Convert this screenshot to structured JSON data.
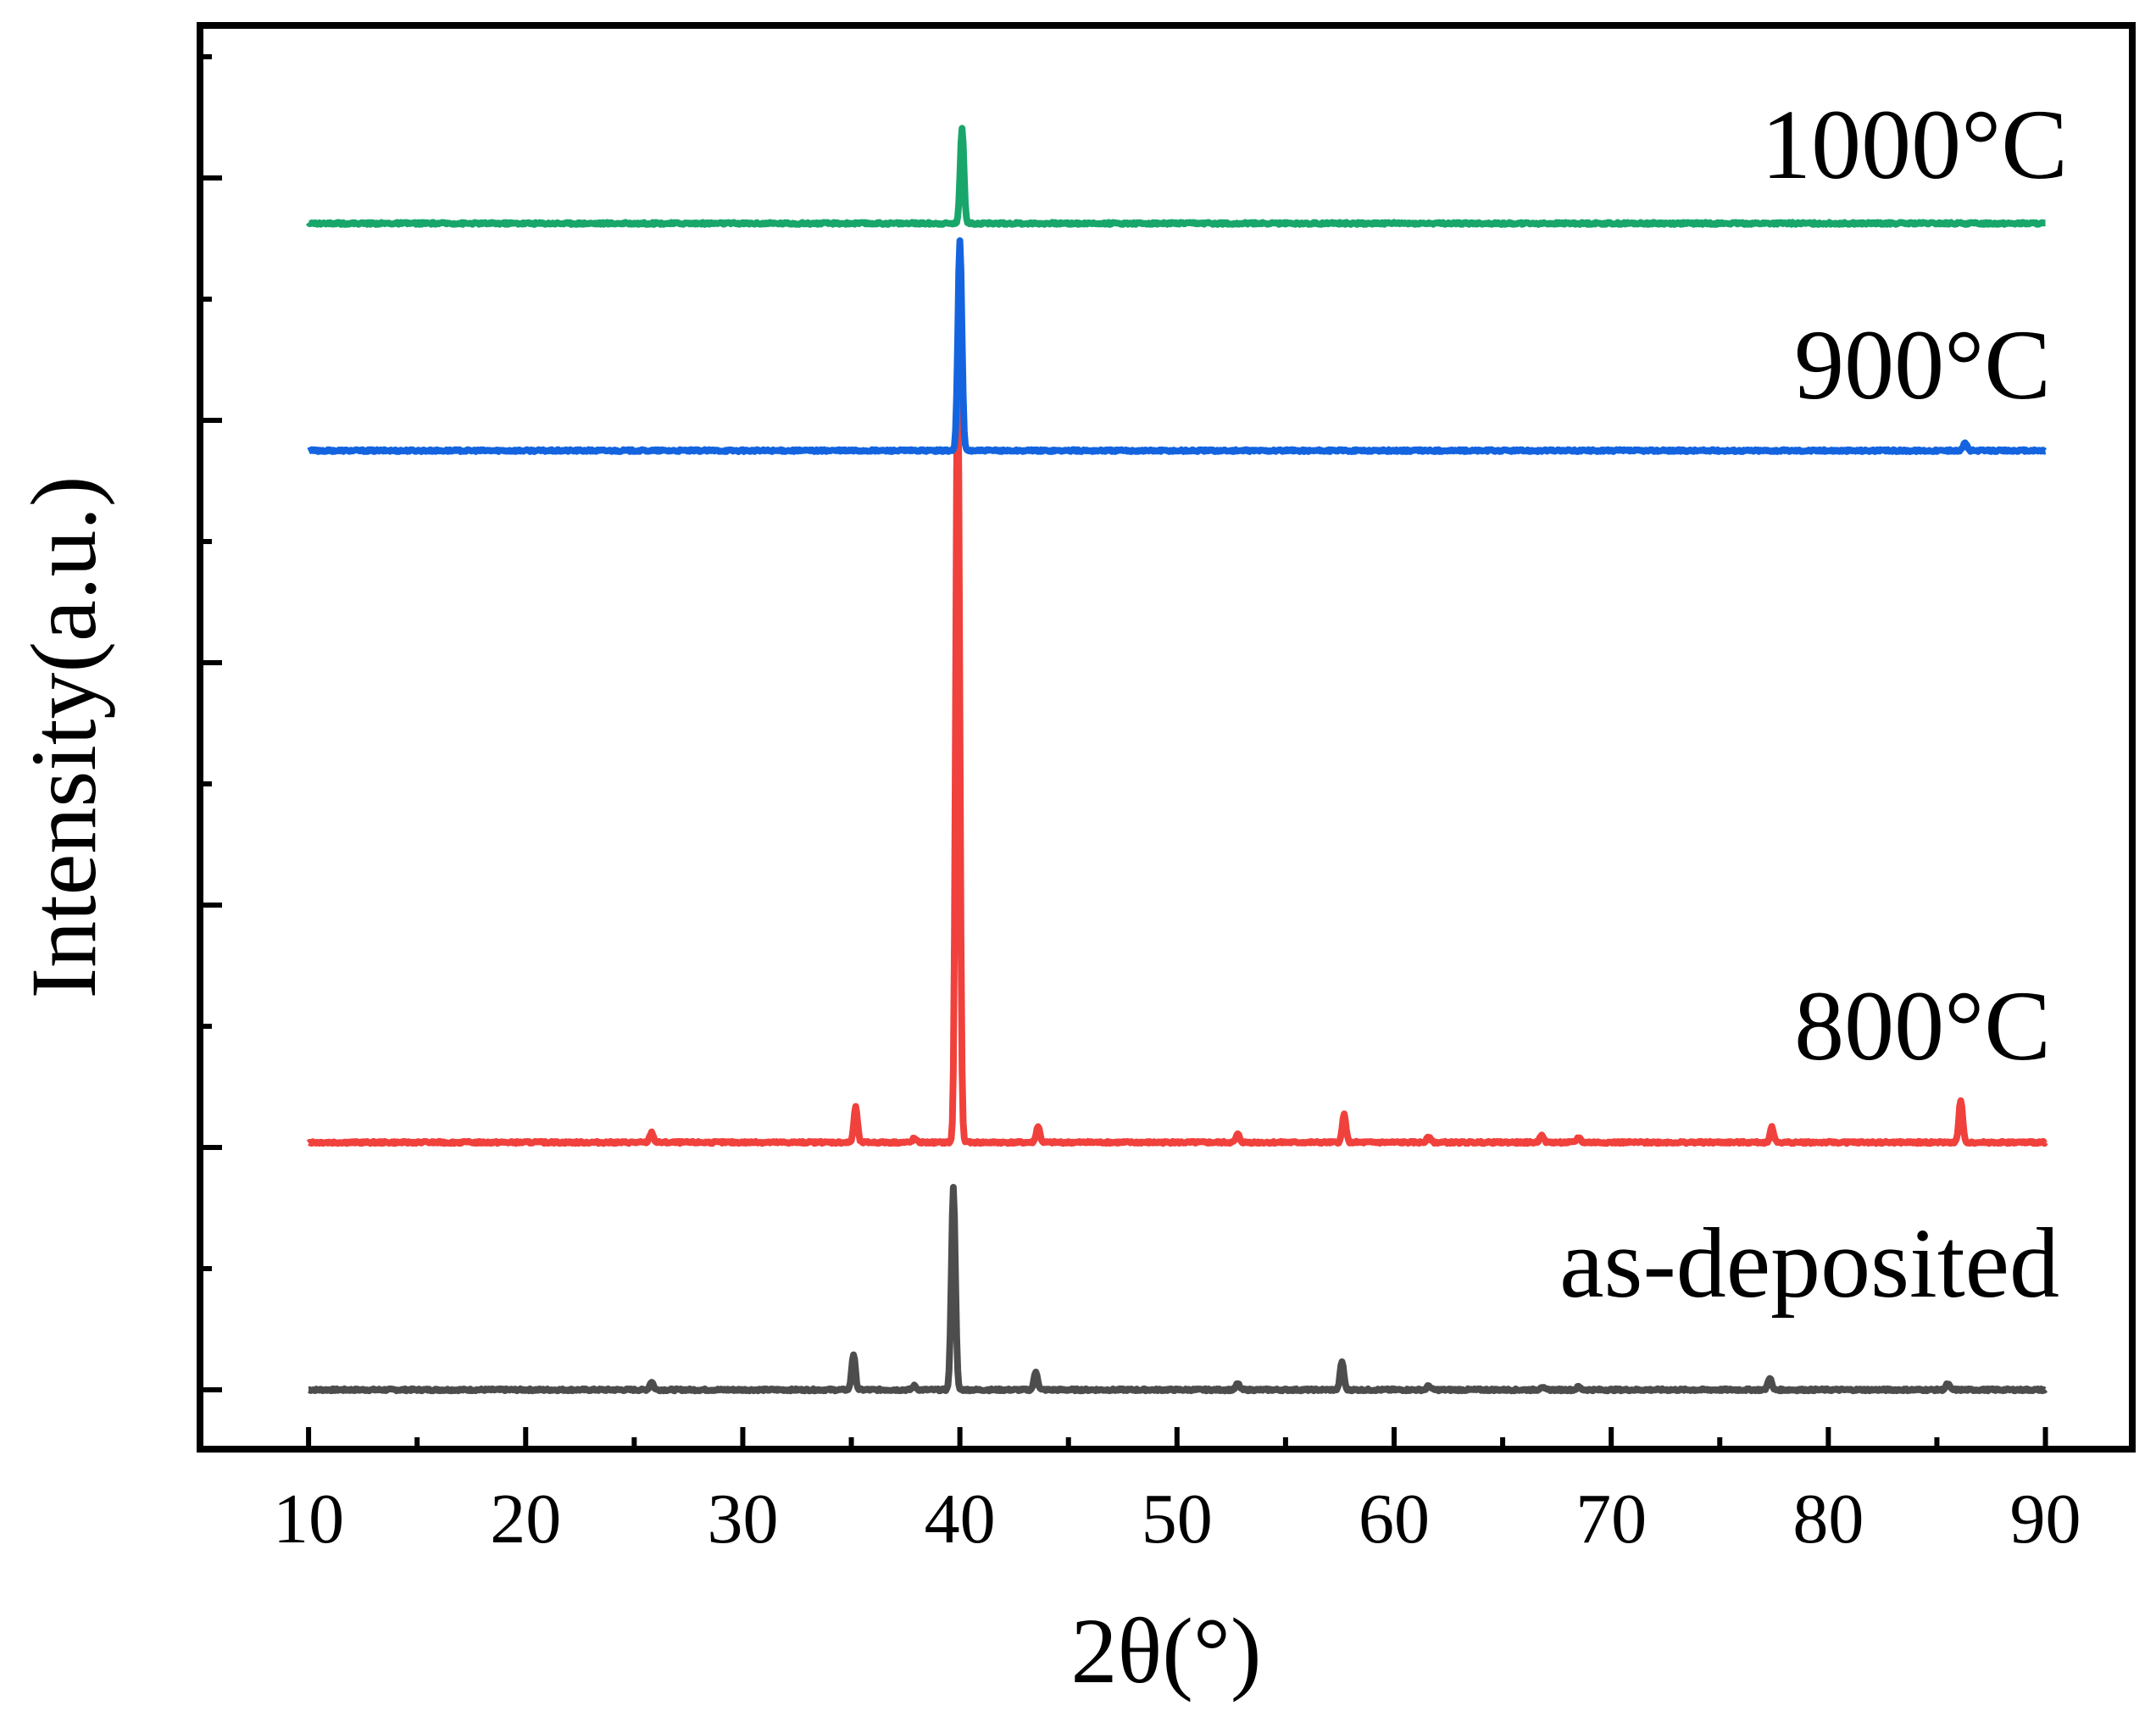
{
  "chart_data": {
    "type": "line",
    "title": "",
    "xlabel": "2θ(°)",
    "ylabel": "Intensity(a.u.)",
    "xlim": [
      5,
      94
    ],
    "ylim": [
      -0.5,
      14
    ],
    "x_ticks": [
      10,
      20,
      30,
      40,
      50,
      60,
      70,
      80,
      90
    ],
    "x_tick_labels": [
      "10",
      "20",
      "30",
      "40",
      "50",
      "60",
      "70",
      "80",
      "90"
    ],
    "y_tick_labels": [],
    "grid": false,
    "legend": "labels placed at right end of each trace",
    "series": [
      {
        "name": "as-deposited",
        "color": "#4d4d4d",
        "baseline": 0,
        "peaks": [
          [
            25.8,
            0.08
          ],
          [
            35.1,
            0.35
          ],
          [
            37.9,
            0.04
          ],
          [
            39.7,
            2.0
          ],
          [
            43.5,
            0.18
          ],
          [
            52.8,
            0.06
          ],
          [
            57.6,
            0.28
          ],
          [
            61.6,
            0.04
          ],
          [
            66.8,
            0.03
          ],
          [
            68.5,
            0.03
          ],
          [
            77.3,
            0.12
          ],
          [
            85.5,
            0.06
          ]
        ]
      },
      {
        "name": "800°C",
        "color": "#f0413c",
        "baseline": 2.45,
        "peaks": [
          [
            25.8,
            0.1
          ],
          [
            35.2,
            0.35
          ],
          [
            37.9,
            0.04
          ],
          [
            39.9,
            7.7
          ],
          [
            43.6,
            0.16
          ],
          [
            52.8,
            0.08
          ],
          [
            57.7,
            0.28
          ],
          [
            61.6,
            0.06
          ],
          [
            66.8,
            0.08
          ],
          [
            68.5,
            0.05
          ],
          [
            77.4,
            0.15
          ],
          [
            86.1,
            0.42
          ]
        ]
      },
      {
        "name": "900°C",
        "color": "#1464e0",
        "baseline": 9.3,
        "peaks": [
          [
            40.0,
            2.07
          ],
          [
            86.3,
            0.08
          ]
        ]
      },
      {
        "name": "1000°C",
        "color": "#18a66b",
        "baseline": 11.55,
        "peaks": [
          [
            40.1,
            0.95
          ]
        ]
      }
    ]
  }
}
